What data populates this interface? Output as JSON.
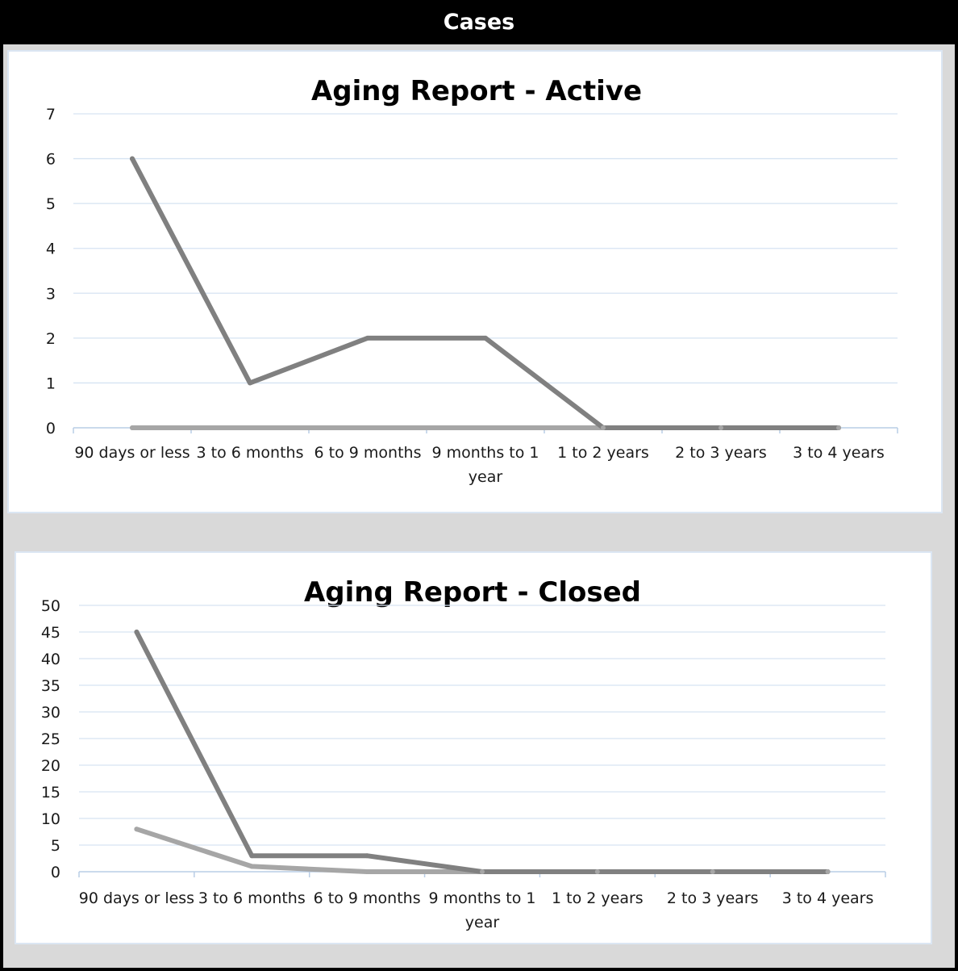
{
  "header": {
    "title": "Cases"
  },
  "chart_data": [
    {
      "type": "line",
      "title": "Aging Report - Active",
      "categories": [
        "90 days or less",
        "3 to 6 months",
        "6 to 9 months",
        "9 months to 1 year",
        "1 to 2 years",
        "2 to 3 years",
        "3 to 4 years"
      ],
      "series": [
        {
          "values": [
            6,
            1,
            2,
            2,
            0,
            0,
            0
          ],
          "color": "#808080"
        },
        {
          "values": [
            0,
            0,
            0,
            0,
            0,
            0,
            0
          ],
          "color": "#a6a6a6"
        }
      ],
      "ylim": [
        0,
        7
      ],
      "yticks": [
        0,
        1,
        2,
        3,
        4,
        5,
        6,
        7
      ],
      "grid": true
    },
    {
      "type": "line",
      "title": "Aging Report - Closed",
      "categories": [
        "90 days or less",
        "3 to 6 months",
        "6 to 9 months",
        "9 months to 1 year",
        "1 to 2 years",
        "2 to 3 years",
        "3 to 4 years"
      ],
      "series": [
        {
          "values": [
            45,
            3,
            3,
            0,
            0,
            0,
            0
          ],
          "color": "#808080"
        },
        {
          "values": [
            8,
            1,
            0,
            0,
            0,
            0,
            0
          ],
          "color": "#a6a6a6"
        }
      ],
      "ylim": [
        0,
        50
      ],
      "yticks": [
        0,
        5,
        10,
        15,
        20,
        25,
        30,
        35,
        40,
        45,
        50
      ],
      "grid": true
    }
  ]
}
